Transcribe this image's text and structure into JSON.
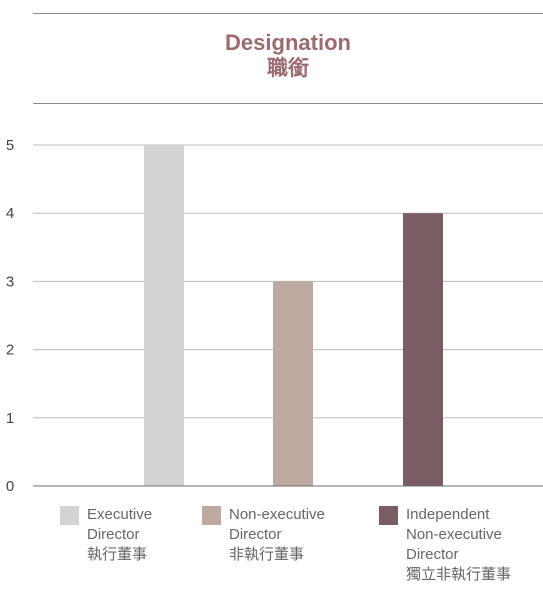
{
  "title": "Designation",
  "title_zh": "職銜",
  "colors": {
    "title": "#9b6b6e",
    "grid": "#bdbdbd",
    "axis": "#6e6e6e",
    "tick": "#444444"
  },
  "chart_data": {
    "type": "bar",
    "title": "Designation",
    "subtitle": "職銜",
    "categories": [
      "Executive Director",
      "Non-executive Director",
      "Independent Non-executive Director"
    ],
    "values": [
      5,
      3,
      4
    ],
    "colors": [
      "#d3d3d4",
      "#bda9a0",
      "#7a5d63"
    ],
    "ylim": [
      0,
      5
    ],
    "yticks": [
      "0",
      "1",
      "2",
      "3",
      "4",
      "5"
    ],
    "grid": true,
    "legend_position": "bottom",
    "legend": [
      {
        "lines": [
          "Executive",
          "Director",
          "執行董事"
        ]
      },
      {
        "lines": [
          "Non-executive",
          "Director",
          "非執行董事"
        ]
      },
      {
        "lines": [
          "Independent",
          "Non-executive",
          "Director",
          "獨立非執行董事"
        ]
      }
    ]
  }
}
